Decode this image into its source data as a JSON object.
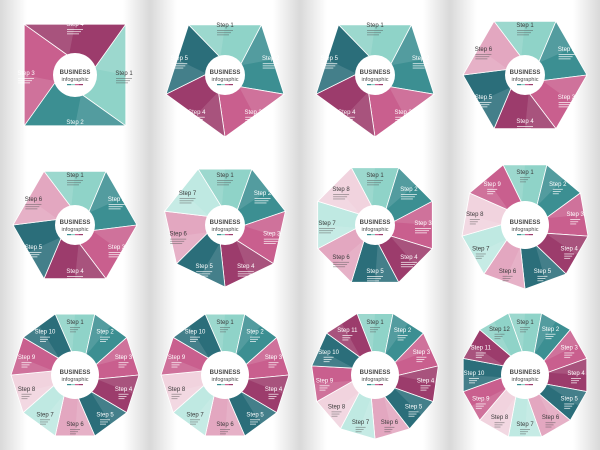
{
  "center": {
    "title": "BUSINESS",
    "subtitle": "infographic"
  },
  "step_word": "Step",
  "colors": {
    "teal_dark": "#2b6e7a",
    "teal_mid": "#3c8f92",
    "mint": "#8fd3c8",
    "mint_light": "#bfe9e2",
    "pink": "#c95f8e",
    "magenta": "#9c3c6c",
    "rose": "#e3a7c0",
    "blush": "#f1d3de"
  },
  "diagrams": [
    {
      "name": "square-4",
      "steps": 4
    },
    {
      "name": "pentagon-5a",
      "steps": 5
    },
    {
      "name": "pentagon-5b",
      "steps": 5
    },
    {
      "name": "hexagon-6a",
      "steps": 6
    },
    {
      "name": "hexagon-6b",
      "steps": 6
    },
    {
      "name": "heptagon-7",
      "steps": 7
    },
    {
      "name": "octagon-8",
      "steps": 8
    },
    {
      "name": "nonagon-9",
      "steps": 9
    },
    {
      "name": "decagon-10",
      "steps": 10
    },
    {
      "name": "decagon-10b",
      "steps": 10
    },
    {
      "name": "hendecagon-11",
      "steps": 11
    },
    {
      "name": "dodecagon-12",
      "steps": 12
    }
  ]
}
